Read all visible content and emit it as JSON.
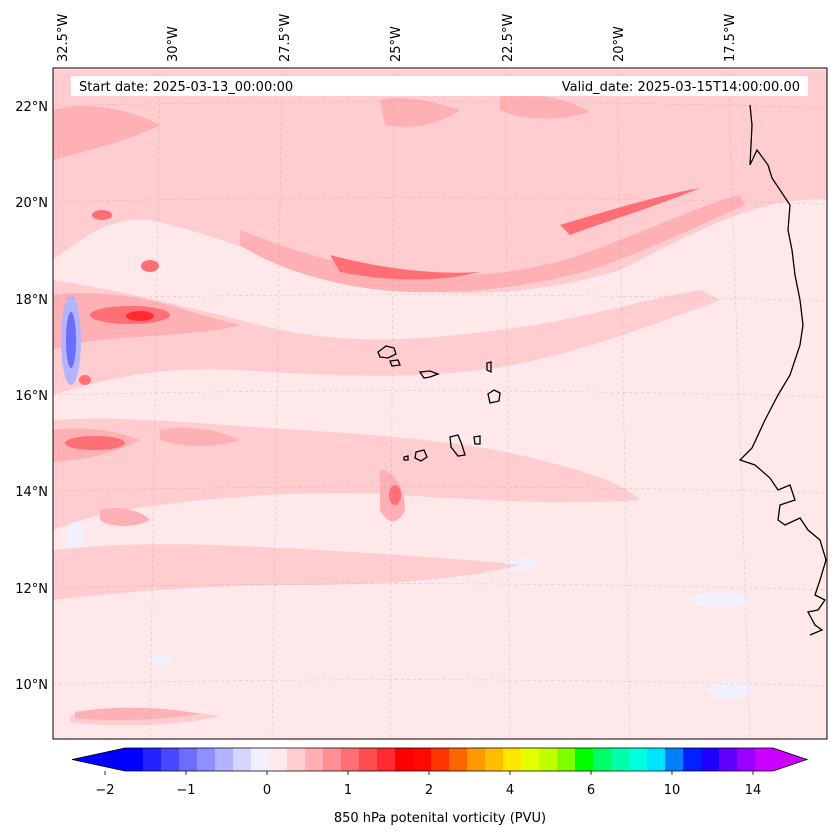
{
  "header": {
    "start_date": "Start date: 2025-03-13_00:00:00",
    "valid_date": "Valid_date: 2025-03-15T14:00:00.00"
  },
  "axes": {
    "lon_labels": [
      "32.5°W",
      "30°W",
      "27.5°W",
      "25°W",
      "22.5°W",
      "20°W",
      "17.5°W"
    ],
    "lat_labels": [
      "22°N",
      "20°N",
      "18°N",
      "16°N",
      "14°N",
      "12°N",
      "10°N"
    ]
  },
  "colorbar": {
    "label": "850 hPa potenital vorticity (PVU)",
    "tick_labels": [
      "−2",
      "−1",
      "0",
      "1",
      "2",
      "4",
      "6",
      "10",
      "14"
    ],
    "colors": [
      "#0000ff",
      "#2323ff",
      "#4848ff",
      "#6c6cff",
      "#8f8fff",
      "#b3b3ff",
      "#d6d6ff",
      "#f0f0ff",
      "#ffe8ea",
      "#ffcccf",
      "#ffb0b4",
      "#ff8f94",
      "#ff6f75",
      "#ff4d52",
      "#ff2a30",
      "#ff0000",
      "#ff0a00",
      "#ff3300",
      "#ff6600",
      "#ff9900",
      "#ffbf00",
      "#ffe600",
      "#e6ff00",
      "#bfff00",
      "#80ff00",
      "#00ff00",
      "#00ff66",
      "#00ffaa",
      "#00ffdd",
      "#00e5ff",
      "#0080ff",
      "#0020ff",
      "#2000ff",
      "#6000ff",
      "#9900ff",
      "#cc00ff"
    ]
  },
  "map": {
    "background": "#ffe8ea",
    "coast_color": "#000000"
  }
}
